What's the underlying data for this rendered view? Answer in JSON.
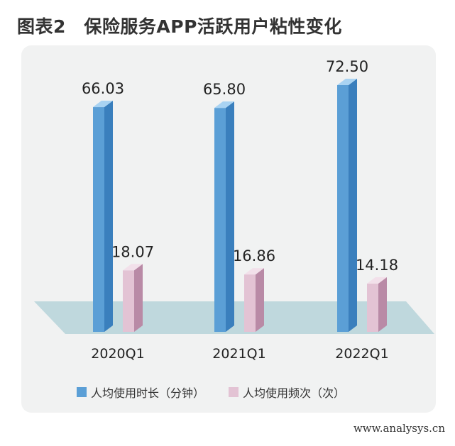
{
  "header": {
    "title": "图表2　保险服务APP活跃用户粘性变化"
  },
  "chart_data": {
    "type": "bar",
    "categories": [
      "2020Q1",
      "2021Q1",
      "2022Q1"
    ],
    "series": [
      {
        "name": "人均使用时长（分钟）",
        "values": [
          66.03,
          65.8,
          72.5
        ],
        "value_labels": [
          "66.03",
          "65.80",
          "72.50"
        ]
      },
      {
        "name": "人均使用频次（次）",
        "values": [
          18.07,
          16.86,
          14.18
        ],
        "value_labels": [
          "18.07",
          "16.86",
          "14.18"
        ]
      }
    ],
    "style": "3d-columns",
    "grid": false,
    "legend_position": "bottom"
  },
  "colors": {
    "series1_front": "#5b9fd6",
    "series1_side": "#3a7fbd",
    "series1_top": "#a9d3f2",
    "series2_front": "#e3c3d4",
    "series2_side": "#b98aa6",
    "series2_top": "#f2e0ea",
    "floor": "#bfd8dd",
    "panel": "#f1f2f2"
  },
  "watermark": "www.analysys.cn"
}
